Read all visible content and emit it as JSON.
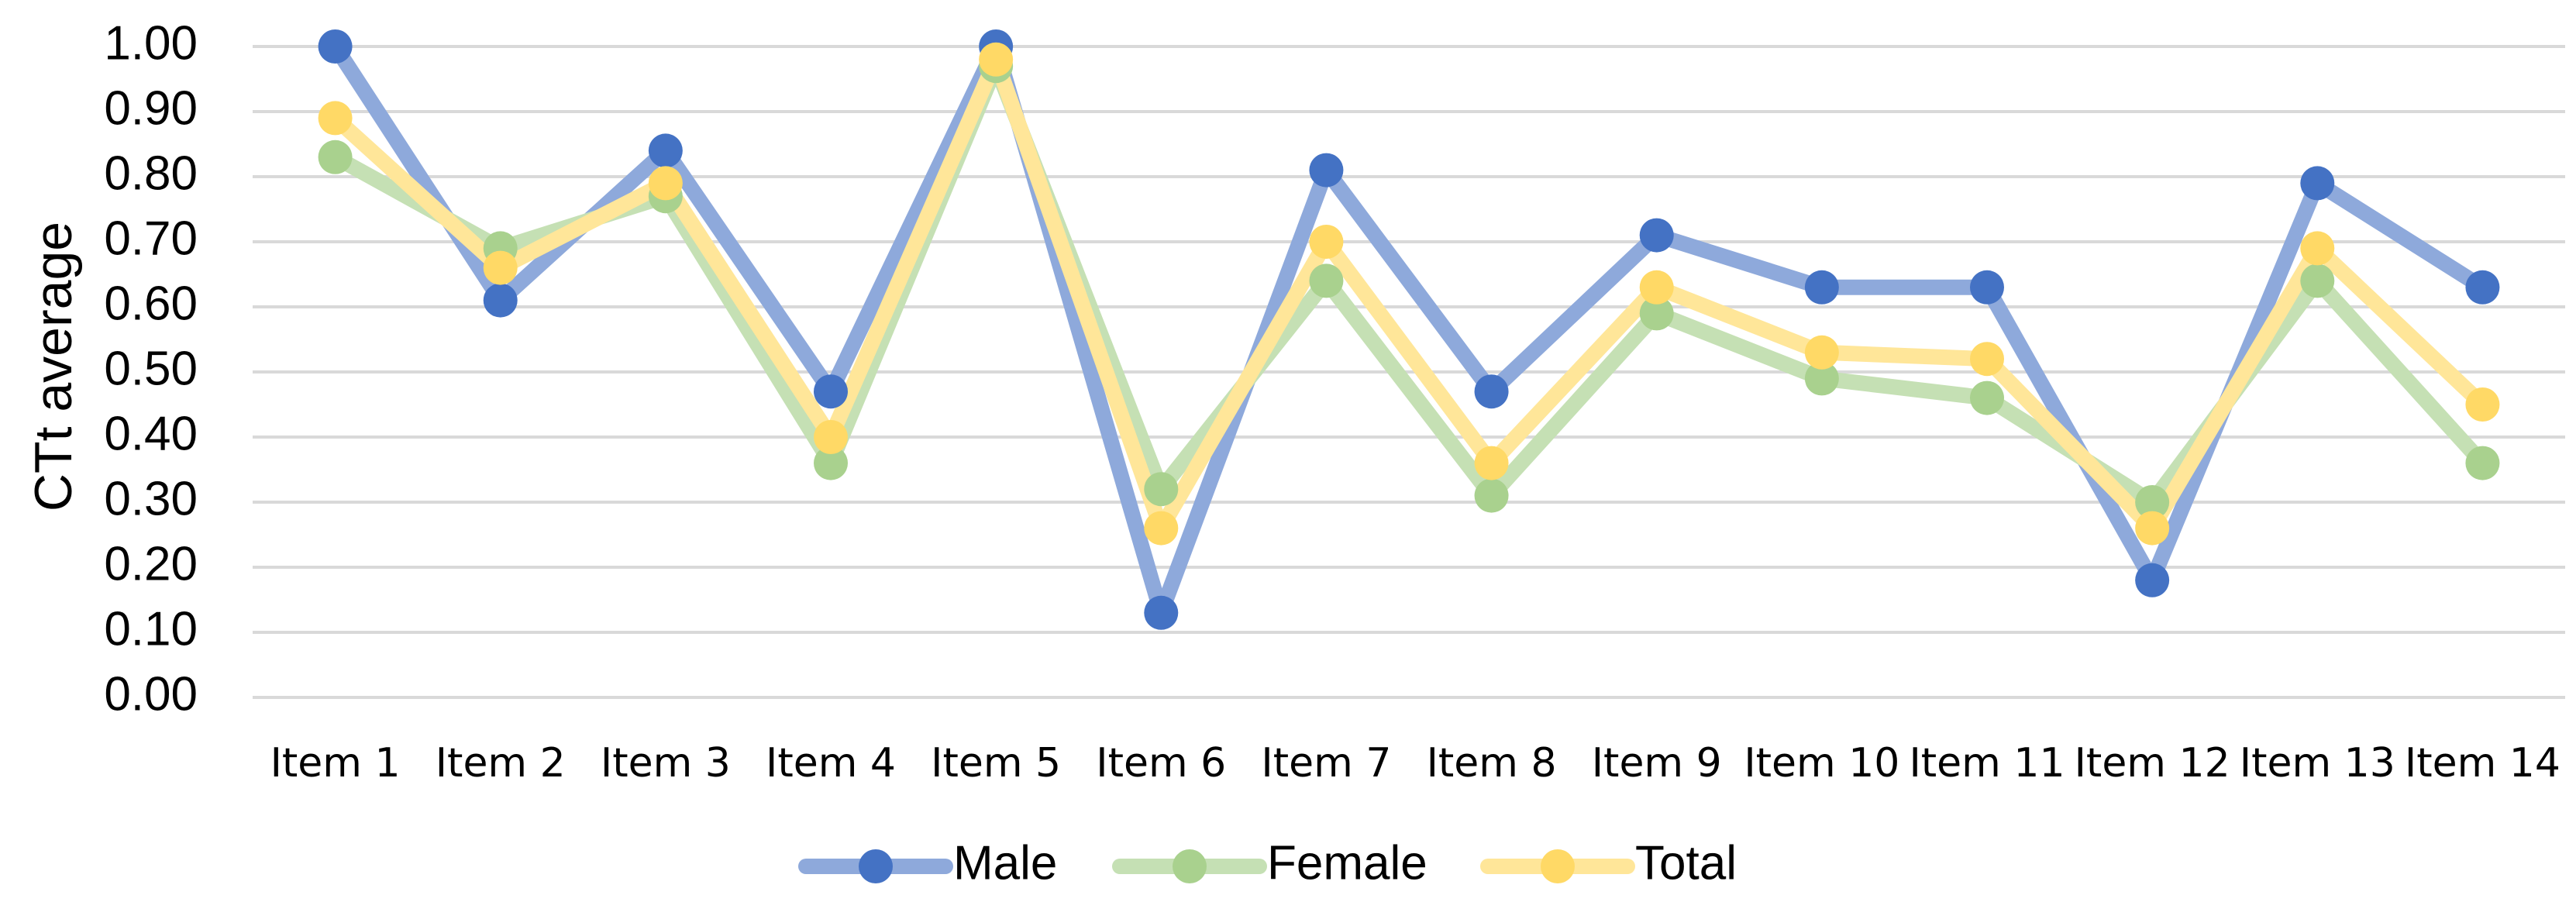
{
  "chart_data": {
    "type": "line",
    "title": "",
    "xlabel": "",
    "ylabel": "CTt average",
    "ylim": [
      0,
      1
    ],
    "ytick_labels": [
      "0.00",
      "0.10",
      "0.20",
      "0.30",
      "0.40",
      "0.50",
      "0.60",
      "0.70",
      "0.80",
      "0.90",
      "1.00"
    ],
    "grid": true,
    "legend_position": "bottom",
    "categories": [
      "Item 1",
      "Item 2",
      "Item 3",
      "Item 4",
      "Item 5",
      "Item 6",
      "Item 7",
      "Item 8",
      "Item 9",
      "Item 10",
      "Item 11",
      "Item 12",
      "Item 13",
      "Item 14"
    ],
    "series": [
      {
        "name": "Male",
        "line_color": "#8EA9DB",
        "marker_color": "#4472C4",
        "values": [
          1.0,
          0.61,
          0.84,
          0.47,
          1.0,
          0.13,
          0.81,
          0.47,
          0.71,
          0.63,
          0.63,
          0.18,
          0.79,
          0.63
        ]
      },
      {
        "name": "Female",
        "line_color": "#C5E0B4",
        "marker_color": "#A9D18E",
        "values": [
          0.83,
          0.69,
          0.77,
          0.36,
          0.97,
          0.32,
          0.64,
          0.31,
          0.59,
          0.49,
          0.46,
          0.3,
          0.64,
          0.36
        ]
      },
      {
        "name": "Total",
        "line_color": "#FFE699",
        "marker_color": "#FFD966",
        "values": [
          0.89,
          0.66,
          0.79,
          0.4,
          0.98,
          0.26,
          0.7,
          0.36,
          0.63,
          0.53,
          0.52,
          0.26,
          0.69,
          0.45
        ]
      }
    ]
  }
}
